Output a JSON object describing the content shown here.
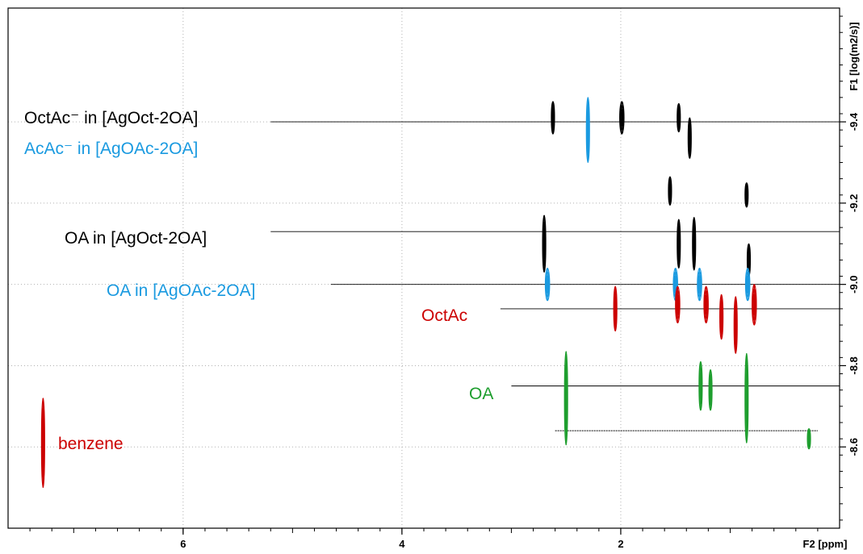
{
  "chart_data": {
    "type": "scatter",
    "title": "",
    "xlabel": "F2 [ppm]",
    "ylabel": "F1 [log(m2/s)]",
    "xlim": [
      7.6,
      0.0
    ],
    "ylim": [
      -8.4,
      -9.68
    ],
    "x_ticks": [
      "6",
      "4",
      "2"
    ],
    "y_ticks": [
      "-8.6",
      "-8.8",
      "-9.0",
      "-9.2",
      "-9.4"
    ],
    "x_tick_values": [
      6,
      4,
      2
    ],
    "y_tick_values": [
      -8.6,
      -8.8,
      -9.0,
      -9.2,
      -9.4
    ],
    "grid": true,
    "series": [
      {
        "name": "OctAc⁻ in [AgOct-2OA]",
        "label_superscript": "ˉ",
        "color": "#000000",
        "diffusion": -9.4,
        "line_x": [
          5.2,
          0.0
        ],
        "peaks": [
          {
            "x": 2.62,
            "y": -9.41,
            "h": 0.08,
            "w": 0.03
          },
          {
            "x": 1.99,
            "y": -9.41,
            "h": 0.08,
            "w": 0.04
          },
          {
            "x": 1.47,
            "y": -9.41,
            "h": 0.07,
            "w": 0.03
          },
          {
            "x": 1.37,
            "y": -9.36,
            "h": 0.1,
            "w": 0.015
          }
        ]
      },
      {
        "name": "AcAc⁻ in [AgOAc-2OA]",
        "color": "#1a9ae0",
        "diffusion": -9.4,
        "line_x": [],
        "peaks": [
          {
            "x": 2.3,
            "y": -9.38,
            "h": 0.16,
            "w": 0.015
          }
        ]
      },
      {
        "name": "OA in [AgOct-2OA]",
        "color": "#000000",
        "diffusion": -9.13,
        "line_x": [
          5.2,
          0.0
        ],
        "peaks": [
          {
            "x": 2.7,
            "y": -9.1,
            "h": 0.14,
            "w": 0.03
          },
          {
            "x": 1.55,
            "y": -9.23,
            "h": 0.07,
            "w": 0.02
          },
          {
            "x": 1.47,
            "y": -9.1,
            "h": 0.12,
            "w": 0.02
          },
          {
            "x": 1.33,
            "y": -9.1,
            "h": 0.13,
            "w": 0.02
          },
          {
            "x": 0.85,
            "y": -9.22,
            "h": 0.06,
            "w": 0.015
          },
          {
            "x": 0.83,
            "y": -9.06,
            "h": 0.08,
            "w": 0.015
          }
        ]
      },
      {
        "name": "OA in [AgOAc-2OA]",
        "color": "#1a9ae0",
        "diffusion": -9.0,
        "line_x": [
          4.65,
          0.0
        ],
        "peaks": [
          {
            "x": 2.67,
            "y": -9.0,
            "h": 0.08,
            "w": 0.04
          },
          {
            "x": 1.5,
            "y": -9.0,
            "h": 0.08,
            "w": 0.04
          },
          {
            "x": 1.28,
            "y": -9.0,
            "h": 0.08,
            "w": 0.04
          },
          {
            "x": 0.84,
            "y": -9.0,
            "h": 0.08,
            "w": 0.04
          }
        ]
      },
      {
        "name": "OctAc",
        "color": "#cc0000",
        "diffusion": -8.94,
        "line_x": [
          3.1,
          0.0
        ],
        "peaks": [
          {
            "x": 2.05,
            "y": -8.94,
            "h": 0.11,
            "w": 0.03
          },
          {
            "x": 1.48,
            "y": -8.95,
            "h": 0.09,
            "w": 0.04
          },
          {
            "x": 1.22,
            "y": -8.95,
            "h": 0.09,
            "w": 0.04
          },
          {
            "x": 1.08,
            "y": -8.92,
            "h": 0.11,
            "w": 0.03
          },
          {
            "x": 0.95,
            "y": -8.9,
            "h": 0.14,
            "w": 0.02
          },
          {
            "x": 0.78,
            "y": -8.95,
            "h": 0.1,
            "w": 0.04
          }
        ]
      },
      {
        "name": "OA",
        "color": "#1e9e2e",
        "diffusion": -8.75,
        "line_x": [
          3.0,
          0.0
        ],
        "peaks": [
          {
            "x": 2.5,
            "y": -8.72,
            "h": 0.23,
            "w": 0.02
          },
          {
            "x": 1.27,
            "y": -8.75,
            "h": 0.12,
            "w": 0.03
          },
          {
            "x": 1.18,
            "y": -8.74,
            "h": 0.1,
            "w": 0.02
          },
          {
            "x": 0.85,
            "y": -8.72,
            "h": 0.22,
            "w": 0.025
          },
          {
            "x": 0.28,
            "y": -8.62,
            "h": 0.05,
            "w": 0.015
          }
        ]
      },
      {
        "name": "benzene",
        "color": "#cc0000",
        "diffusion": -8.61,
        "line_x": [],
        "peaks": [
          {
            "x": 7.28,
            "y": -8.61,
            "h": 0.22,
            "w": 0.01
          }
        ]
      }
    ],
    "extra_lines": [
      {
        "y": -8.64,
        "x": [
          2.6,
          0.2
        ],
        "color": "#000000",
        "dotted": true
      }
    ]
  }
}
